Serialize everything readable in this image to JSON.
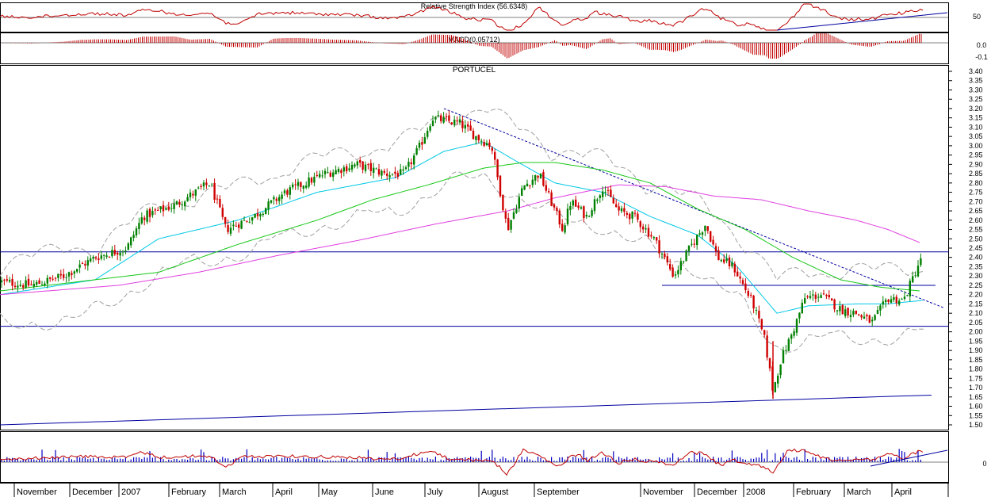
{
  "chart_data": {
    "type": "candlestick",
    "title": "PORTUCEL",
    "price_ticks": [
      "3.40",
      "3.35",
      "3.30",
      "3.25",
      "3.20",
      "3.15",
      "3.10",
      "3.05",
      "3.00",
      "2.95",
      "2.90",
      "2.85",
      "2.80",
      "2.75",
      "2.70",
      "2.65",
      "2.60",
      "2.55",
      "2.50",
      "2.45",
      "2.40",
      "2.35",
      "2.30",
      "2.25",
      "2.20",
      "2.15",
      "2.10",
      "2.05",
      "2.00",
      "1.95",
      "1.90",
      "1.85",
      "1.80",
      "1.75",
      "1.70",
      "1.65",
      "1.60",
      "1.55",
      "1.50"
    ],
    "months": [
      "November",
      "December",
      "2007",
      "February",
      "March",
      "April",
      "May",
      "June",
      "July",
      "August",
      "September",
      "November",
      "December",
      "2008",
      "February",
      "March",
      "April"
    ],
    "close_anchors": [
      [
        0,
        2.27
      ],
      [
        40,
        2.25
      ],
      [
        80,
        2.3
      ],
      [
        120,
        2.4
      ],
      [
        160,
        2.45
      ],
      [
        180,
        2.62
      ],
      [
        220,
        2.68
      ],
      [
        265,
        2.8
      ],
      [
        285,
        2.55
      ],
      [
        320,
        2.62
      ],
      [
        360,
        2.75
      ],
      [
        410,
        2.85
      ],
      [
        450,
        2.9
      ],
      [
        485,
        2.85
      ],
      [
        510,
        2.85
      ],
      [
        530,
        3.0
      ],
      [
        545,
        3.15
      ],
      [
        580,
        3.12
      ],
      [
        600,
        3.05
      ],
      [
        620,
        3.0
      ],
      [
        640,
        2.55
      ],
      [
        660,
        2.78
      ],
      [
        680,
        2.85
      ],
      [
        695,
        2.7
      ],
      [
        710,
        2.55
      ],
      [
        720,
        2.7
      ],
      [
        740,
        2.62
      ],
      [
        760,
        2.78
      ],
      [
        780,
        2.65
      ],
      [
        800,
        2.62
      ],
      [
        825,
        2.5
      ],
      [
        850,
        2.3
      ],
      [
        870,
        2.45
      ],
      [
        890,
        2.58
      ],
      [
        905,
        2.4
      ],
      [
        925,
        2.35
      ],
      [
        950,
        2.15
      ],
      [
        965,
        1.95
      ],
      [
        975,
        1.68
      ],
      [
        985,
        1.85
      ],
      [
        1000,
        2.0
      ],
      [
        1015,
        2.18
      ],
      [
        1035,
        2.2
      ],
      [
        1060,
        2.12
      ],
      [
        1080,
        2.1
      ],
      [
        1100,
        2.05
      ],
      [
        1120,
        2.18
      ],
      [
        1140,
        2.17
      ],
      [
        1160,
        2.38
      ]
    ],
    "support_lines": [
      2.43,
      2.03
    ],
    "short_support": 2.25,
    "trendline": {
      "from": [
        560,
        3.2
      ],
      "to": [
        1190,
        2.13
      ]
    },
    "rising_trend": {
      "from": [
        0,
        1.5
      ],
      "to": [
        1175,
        1.66
      ]
    },
    "moving_averages": [
      {
        "color": "#00c8e6",
        "anchors": [
          [
            0,
            2.2
          ],
          [
            120,
            2.28
          ],
          [
            200,
            2.5
          ],
          [
            300,
            2.6
          ],
          [
            400,
            2.75
          ],
          [
            500,
            2.83
          ],
          [
            560,
            2.97
          ],
          [
            610,
            3.02
          ],
          [
            650,
            2.92
          ],
          [
            700,
            2.8
          ],
          [
            760,
            2.75
          ],
          [
            820,
            2.62
          ],
          [
            880,
            2.52
          ],
          [
            930,
            2.35
          ],
          [
            980,
            2.1
          ],
          [
            1020,
            2.14
          ],
          [
            1080,
            2.15
          ],
          [
            1120,
            2.15
          ],
          [
            1165,
            2.17
          ]
        ]
      },
      {
        "color": "#18c818",
        "anchors": [
          [
            0,
            2.22
          ],
          [
            200,
            2.32
          ],
          [
            300,
            2.47
          ],
          [
            400,
            2.6
          ],
          [
            470,
            2.71
          ],
          [
            540,
            2.79
          ],
          [
            610,
            2.88
          ],
          [
            660,
            2.91
          ],
          [
            700,
            2.91
          ],
          [
            760,
            2.87
          ],
          [
            820,
            2.8
          ],
          [
            880,
            2.66
          ],
          [
            940,
            2.55
          ],
          [
            1000,
            2.4
          ],
          [
            1060,
            2.28
          ],
          [
            1110,
            2.24
          ],
          [
            1160,
            2.22
          ]
        ]
      },
      {
        "color": "#e040e0",
        "anchors": [
          [
            0,
            2.2
          ],
          [
            150,
            2.25
          ],
          [
            250,
            2.32
          ],
          [
            350,
            2.41
          ],
          [
            450,
            2.49
          ],
          [
            550,
            2.58
          ],
          [
            640,
            2.65
          ],
          [
            700,
            2.72
          ],
          [
            780,
            2.79
          ],
          [
            840,
            2.78
          ],
          [
            900,
            2.73
          ],
          [
            960,
            2.71
          ],
          [
            1020,
            2.65
          ],
          [
            1080,
            2.6
          ],
          [
            1120,
            2.55
          ],
          [
            1160,
            2.48
          ]
        ]
      }
    ],
    "rsi": {
      "label": "Relative Strength Index  (56.6348)",
      "ticks": [
        "50"
      ]
    },
    "macd": {
      "label": "MACD(0.05712)",
      "ticks": [
        "0.0",
        "-0.1"
      ]
    },
    "volume_panel": {
      "ticks": [
        "0"
      ]
    },
    "colors": {
      "up": "#008000",
      "down": "#d00000",
      "panel_border": "#000000",
      "support": "#0000a0",
      "band": "#a0a0a0",
      "oscillator": "#c00000",
      "volume": "#0000c0"
    }
  }
}
